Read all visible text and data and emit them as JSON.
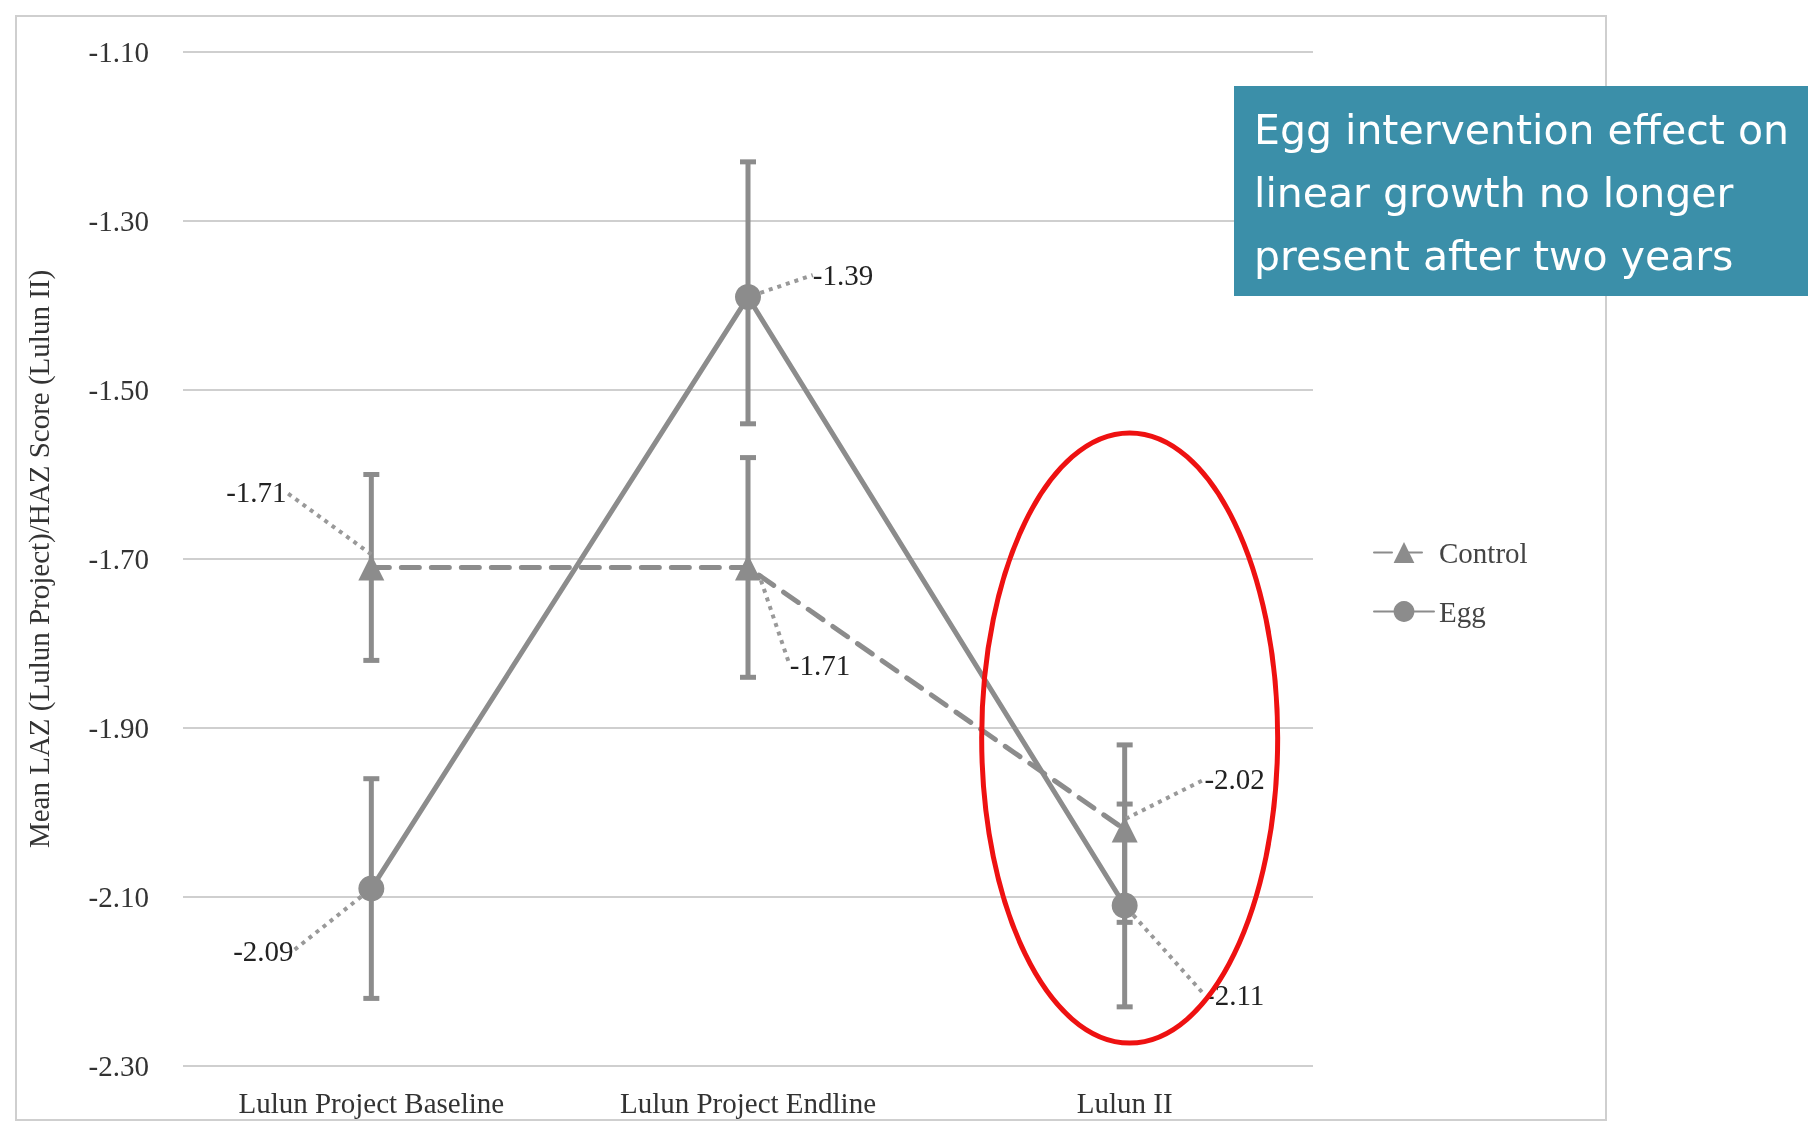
{
  "chart_data": {
    "type": "line",
    "ylabel": "Mean LAZ (Lulun Project)/HAZ Score (Lulun II)",
    "categories": [
      "Lulun Project Baseline",
      "Lulun Project Endline",
      "Lulun II"
    ],
    "series": [
      {
        "name": "Control",
        "color": "#8c8c8c",
        "values": [
          -1.71,
          -1.71,
          -2.02
        ],
        "errors": [
          [
            -1.82,
            -1.6
          ],
          [
            -1.84,
            -1.58
          ],
          [
            -2.13,
            -1.92
          ]
        ],
        "marker": "triangle",
        "line_style": "dashed"
      },
      {
        "name": "Egg",
        "color": "#8c8c8c",
        "values": [
          -2.09,
          -1.39,
          -2.11
        ],
        "errors": [
          [
            -2.22,
            -1.96
          ],
          [
            -1.54,
            -1.23
          ],
          [
            -2.23,
            -1.99
          ]
        ],
        "marker": "circle",
        "line_style": "solid"
      }
    ],
    "ylim": [
      -2.3,
      -1.1
    ],
    "yticks": [
      {
        "value": -2.3,
        "label": "-2.30"
      },
      {
        "value": -2.1,
        "label": "-2.10"
      },
      {
        "value": -1.9,
        "label": "-1.90"
      },
      {
        "value": -1.7,
        "label": "-1.70"
      },
      {
        "value": -1.5,
        "label": "-1.50"
      },
      {
        "value": -1.3,
        "label": "-1.30"
      },
      {
        "value": -1.1,
        "label": "-1.10"
      }
    ],
    "grid": "y",
    "legend": "right",
    "data_labels": true,
    "annotations": [
      "Egg intervention effect on linear growth no longer present after two years"
    ]
  }
}
